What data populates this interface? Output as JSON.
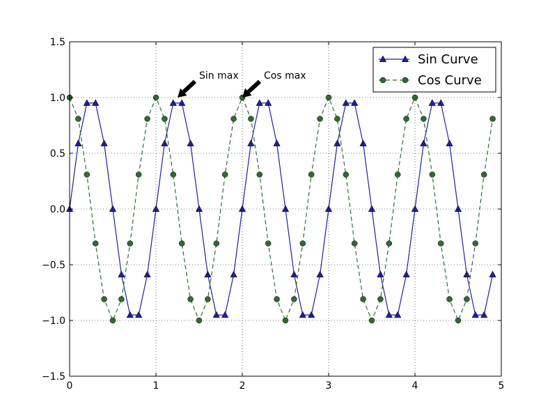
{
  "chart_data": {
    "type": "line",
    "title": "",
    "xlabel": "",
    "ylabel": "",
    "xlim": [
      0,
      5
    ],
    "ylim": [
      -1.5,
      1.5
    ],
    "xticks": [
      "0",
      "1",
      "2",
      "3",
      "4",
      "5"
    ],
    "yticks": [
      "1.5",
      "1.0",
      "0.5",
      "0.0",
      "−0.5",
      "−1.0",
      "−1.5"
    ],
    "grid": true,
    "legend_position": "top-right",
    "x": [
      0.0,
      0.1,
      0.2,
      0.3,
      0.4,
      0.5,
      0.6,
      0.7,
      0.8,
      0.9,
      1.0,
      1.1,
      1.2,
      1.3,
      1.4,
      1.5,
      1.6,
      1.7,
      1.8,
      1.9,
      2.0,
      2.1,
      2.2,
      2.3,
      2.4,
      2.5,
      2.6,
      2.7,
      2.8,
      2.9,
      3.0,
      3.1,
      3.2,
      3.3,
      3.4,
      3.5,
      3.6,
      3.7,
      3.8,
      3.9,
      4.0,
      4.1,
      4.2,
      4.3,
      4.4,
      4.5,
      4.6,
      4.7,
      4.8,
      4.9
    ],
    "series": [
      {
        "name": "Sin Curve",
        "color": "#1f1f9a",
        "linestyle": "solid",
        "marker": "triangle",
        "values": [
          0.0,
          0.588,
          0.951,
          0.951,
          0.588,
          0.0,
          -0.588,
          -0.951,
          -0.951,
          -0.588,
          0.0,
          0.588,
          0.951,
          0.951,
          0.588,
          0.0,
          -0.588,
          -0.951,
          -0.951,
          -0.588,
          0.0,
          0.588,
          0.951,
          0.951,
          0.588,
          0.0,
          -0.588,
          -0.951,
          -0.951,
          -0.588,
          0.0,
          0.588,
          0.951,
          0.951,
          0.588,
          0.0,
          -0.588,
          -0.951,
          -0.951,
          -0.588,
          0.0,
          0.588,
          0.951,
          0.951,
          0.588,
          0.0,
          -0.588,
          -0.951,
          -0.951,
          -0.588
        ]
      },
      {
        "name": "Cos Curve",
        "color": "#2f6b35",
        "linestyle": "dashed",
        "marker": "circle",
        "values": [
          1.0,
          0.809,
          0.309,
          -0.309,
          -0.809,
          -1.0,
          -0.809,
          -0.309,
          0.309,
          0.809,
          1.0,
          0.809,
          0.309,
          -0.309,
          -0.809,
          -1.0,
          -0.809,
          -0.309,
          0.309,
          0.809,
          1.0,
          0.809,
          0.309,
          -0.309,
          -0.809,
          -1.0,
          -0.809,
          -0.309,
          0.309,
          0.809,
          1.0,
          0.809,
          0.309,
          -0.309,
          -0.809,
          -1.0,
          -0.809,
          -0.309,
          0.309,
          0.809,
          1.0,
          0.809,
          0.309,
          -0.309,
          -0.809,
          -1.0,
          -0.809,
          -0.309,
          0.309,
          0.809
        ]
      }
    ],
    "annotations": [
      {
        "text": "Sin max",
        "x": 1.25,
        "y": 1.0,
        "text_x": 1.5,
        "text_y": 1.17
      },
      {
        "text": "Cos max",
        "x": 2.0,
        "y": 1.0,
        "text_x": 2.25,
        "text_y": 1.17
      }
    ]
  }
}
